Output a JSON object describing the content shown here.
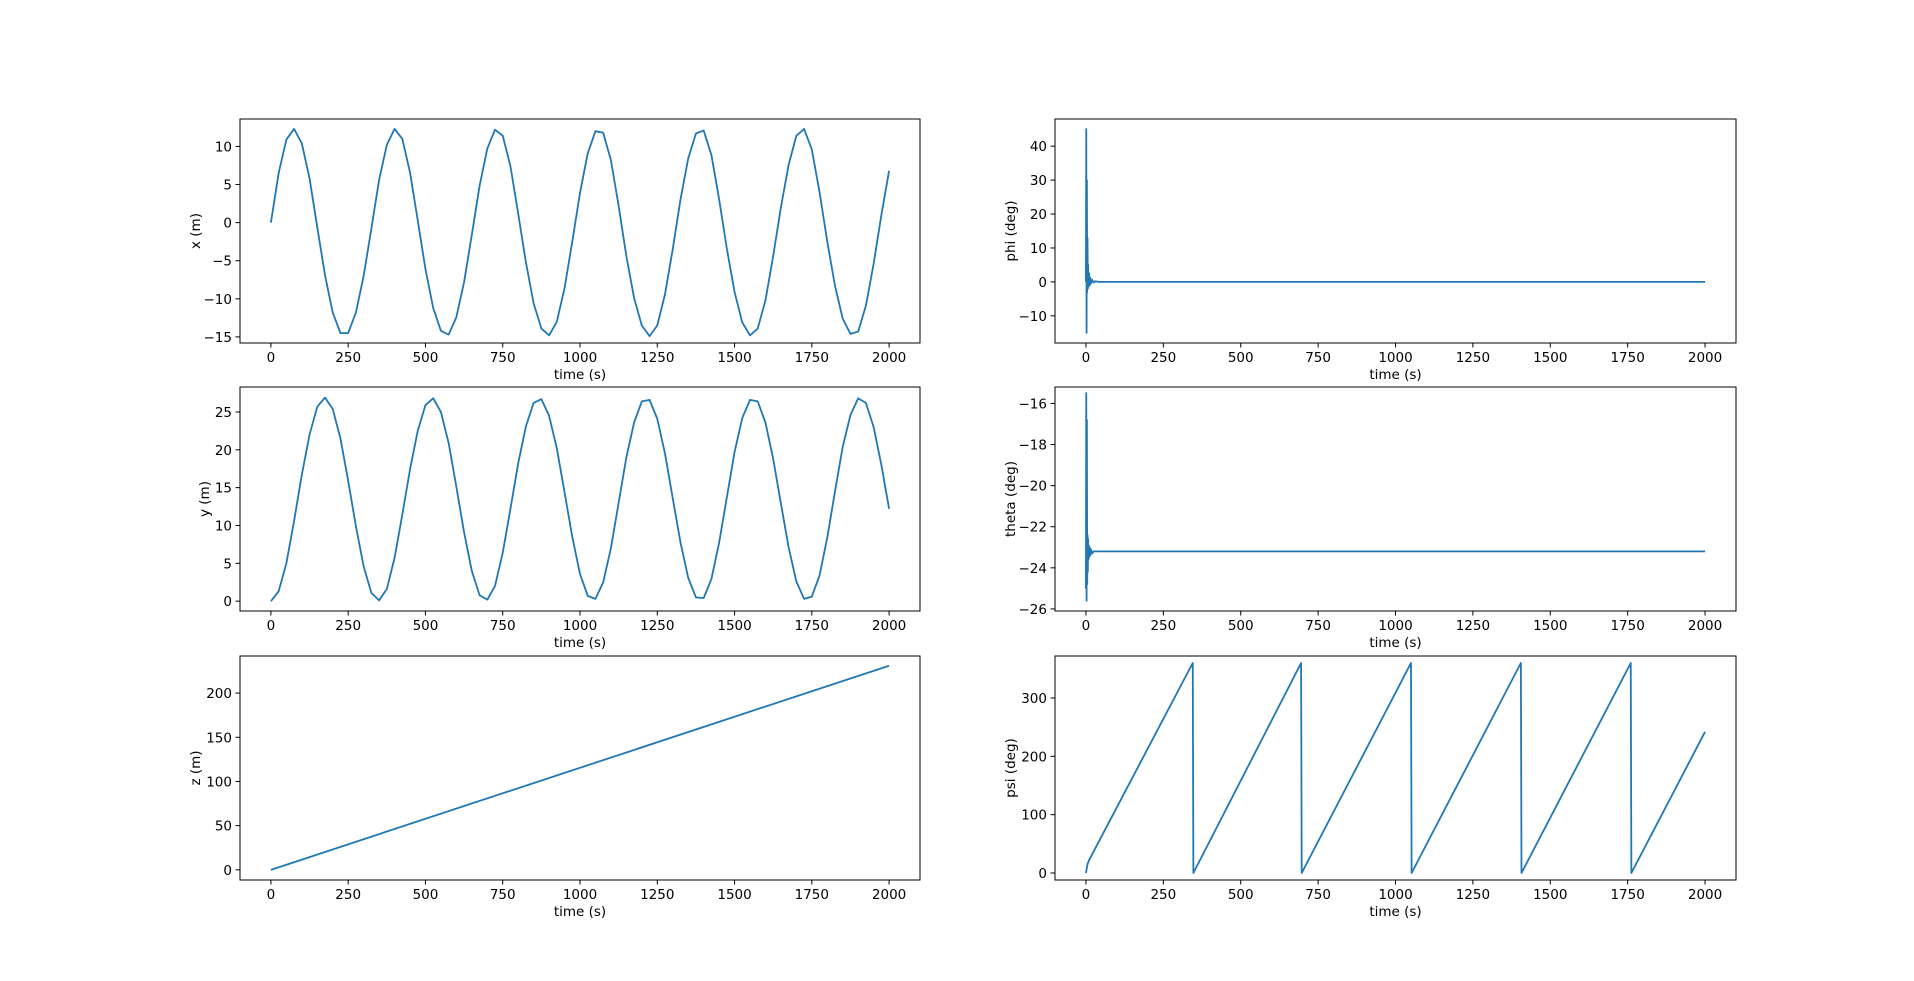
{
  "line_color": "#1f77b4",
  "chart_data": [
    {
      "type": "line",
      "xlabel": "time (s)",
      "ylabel": "x (m)",
      "xlim": [
        -100,
        2100
      ],
      "ylim": [
        -15.8,
        13.6
      ],
      "xticks": [
        0,
        250,
        500,
        750,
        1000,
        1250,
        1500,
        1750,
        2000
      ],
      "yticks": [
        -15,
        -10,
        -5,
        0,
        5,
        10
      ],
      "series": [
        {
          "x": [
            0,
            25,
            50,
            75,
            100,
            125,
            150,
            175,
            200,
            225,
            250,
            275,
            300,
            325,
            350,
            375,
            400,
            425,
            450,
            475,
            500,
            525,
            550,
            575,
            600,
            625,
            650,
            675,
            700,
            725,
            750,
            775,
            800,
            825,
            850,
            875,
            900,
            925,
            950,
            975,
            1000,
            1025,
            1050,
            1075,
            1100,
            1125,
            1150,
            1175,
            1200,
            1225,
            1250,
            1275,
            1300,
            1325,
            1350,
            1375,
            1400,
            1425,
            1450,
            1475,
            1500,
            1525,
            1550,
            1575,
            1600,
            1625,
            1650,
            1675,
            1700,
            1725,
            1750,
            1775,
            1800,
            1825,
            1850,
            1875,
            1900,
            1925,
            1950,
            1975,
            2000
          ],
          "y": [
            0.0,
            6.5,
            10.9,
            12.3,
            10.4,
            5.8,
            -0.6,
            -6.9,
            -11.8,
            -14.5,
            -14.5,
            -11.8,
            -7.0,
            -0.8,
            5.6,
            10.2,
            12.3,
            11.0,
            6.6,
            0.3,
            -6.1,
            -11.2,
            -14.2,
            -14.7,
            -12.4,
            -7.8,
            -1.6,
            4.8,
            9.7,
            12.2,
            11.4,
            7.4,
            1.2,
            -5.2,
            -10.6,
            -13.9,
            -14.8,
            -13.0,
            -8.6,
            -2.5,
            3.9,
            9.1,
            12.0,
            11.8,
            8.2,
            2.2,
            -4.4,
            -9.9,
            -13.5,
            -14.9,
            -13.5,
            -9.4,
            -3.5,
            3.0,
            8.4,
            11.7,
            12.1,
            8.9,
            3.1,
            -3.4,
            -9.1,
            -13.1,
            -14.8,
            -13.9,
            -10.2,
            -4.4,
            2.0,
            7.6,
            11.4,
            12.3,
            9.6,
            4.0,
            -2.5,
            -8.3,
            -12.6,
            -14.6,
            -14.3,
            -10.9,
            -5.4,
            1.0,
            6.8
          ]
        }
      ]
    },
    {
      "type": "line",
      "xlabel": "time (s)",
      "ylabel": "phi (deg)",
      "xlim": [
        -100,
        2100
      ],
      "ylim": [
        -18,
        48
      ],
      "xticks": [
        0,
        250,
        500,
        750,
        1000,
        1250,
        1500,
        1750,
        2000
      ],
      "yticks": [
        -10,
        0,
        10,
        20,
        30,
        40
      ],
      "series": [
        {
          "x": [
            0,
            1,
            2,
            3,
            4,
            5,
            6,
            7,
            8,
            10,
            12,
            14,
            16,
            20,
            25,
            30,
            40,
            60,
            100,
            2000
          ],
          "y": [
            0,
            45,
            -15,
            30,
            -3,
            13,
            -2,
            5,
            -1.5,
            2.5,
            -1.0,
            1.2,
            -0.5,
            0.6,
            -0.2,
            0.2,
            0,
            0,
            0,
            0
          ]
        }
      ]
    },
    {
      "type": "line",
      "xlabel": "time (s)",
      "ylabel": "y (m)",
      "xlim": [
        -100,
        2100
      ],
      "ylim": [
        -1.3,
        28.3
      ],
      "xticks": [
        0,
        250,
        500,
        750,
        1000,
        1250,
        1500,
        1750,
        2000
      ],
      "yticks": [
        0,
        5,
        10,
        15,
        20,
        25
      ],
      "series": [
        {
          "x": [
            0,
            25,
            50,
            75,
            100,
            125,
            150,
            175,
            200,
            225,
            250,
            275,
            300,
            325,
            350,
            375,
            400,
            425,
            450,
            475,
            500,
            525,
            550,
            575,
            600,
            625,
            650,
            675,
            700,
            725,
            750,
            775,
            800,
            825,
            850,
            875,
            900,
            925,
            950,
            975,
            1000,
            1025,
            1050,
            1075,
            1100,
            1125,
            1150,
            1175,
            1200,
            1225,
            1250,
            1275,
            1300,
            1325,
            1350,
            1375,
            1400,
            1425,
            1450,
            1475,
            1500,
            1525,
            1550,
            1575,
            1600,
            1625,
            1650,
            1675,
            1700,
            1725,
            1750,
            1775,
            1800,
            1825,
            1850,
            1875,
            1900,
            1925,
            1950,
            1975,
            2000
          ],
          "y": [
            0.0,
            1.3,
            5.0,
            10.6,
            16.7,
            22.0,
            25.7,
            26.9,
            25.4,
            21.5,
            15.9,
            9.9,
            4.6,
            1.1,
            0.1,
            1.6,
            5.7,
            11.4,
            17.4,
            22.5,
            25.9,
            26.8,
            25.0,
            20.9,
            15.1,
            9.1,
            4.0,
            0.8,
            0.2,
            2.0,
            6.4,
            12.2,
            18.2,
            23.1,
            26.2,
            26.7,
            24.5,
            20.2,
            14.4,
            8.5,
            3.6,
            0.7,
            0.3,
            2.5,
            7.0,
            13.0,
            19.0,
            23.6,
            26.4,
            26.6,
            24.1,
            19.5,
            13.6,
            7.8,
            3.1,
            0.5,
            0.4,
            2.9,
            7.7,
            13.7,
            19.7,
            24.2,
            26.6,
            26.4,
            23.6,
            18.8,
            12.9,
            7.1,
            2.6,
            0.3,
            0.6,
            3.4,
            8.4,
            14.5,
            20.4,
            24.6,
            26.8,
            26.2,
            23.0,
            18.0,
            12.2
          ]
        }
      ]
    },
    {
      "type": "line",
      "xlabel": "time (s)",
      "ylabel": "theta (deg)",
      "xlim": [
        -100,
        2100
      ],
      "ylim": [
        -26.1,
        -15.2
      ],
      "xticks": [
        0,
        250,
        500,
        750,
        1000,
        1250,
        1500,
        1750,
        2000
      ],
      "yticks": [
        -26,
        -24,
        -22,
        -20,
        -18,
        -16
      ],
      "series": [
        {
          "x": [
            0,
            1,
            2,
            3,
            4,
            5,
            6,
            7,
            8,
            9,
            10,
            12,
            14,
            16,
            20,
            25,
            30,
            40,
            60,
            100,
            2000
          ],
          "y": [
            -25.0,
            -15.5,
            -25.6,
            -16.8,
            -24.8,
            -22.4,
            -24.2,
            -22.6,
            -23.6,
            -22.9,
            -23.5,
            -23.0,
            -23.4,
            -23.1,
            -23.3,
            -23.2,
            -23.2,
            -23.2,
            -23.2,
            -23.2,
            -23.2
          ]
        }
      ]
    },
    {
      "type": "line",
      "xlabel": "time (s)",
      "ylabel": "z (m)",
      "xlim": [
        -100,
        2100
      ],
      "ylim": [
        -11.5,
        242
      ],
      "xticks": [
        0,
        250,
        500,
        750,
        1000,
        1250,
        1500,
        1750,
        2000
      ],
      "yticks": [
        0,
        50,
        100,
        150,
        200
      ],
      "series": [
        {
          "x": [
            0,
            2000
          ],
          "y": [
            0,
            231
          ]
        }
      ]
    },
    {
      "type": "line",
      "xlabel": "time (s)",
      "ylabel": "psi (deg)",
      "xlim": [
        -100,
        2100
      ],
      "ylim": [
        -12,
        372
      ],
      "xticks": [
        0,
        250,
        500,
        750,
        1000,
        1250,
        1500,
        1750,
        2000
      ],
      "yticks": [
        0,
        100,
        200,
        300
      ],
      "series": [
        {
          "x": [
            0,
            5,
            10,
            345,
            347,
            695,
            697,
            1050,
            1052,
            1405,
            1407,
            1760,
            1762,
            2000
          ],
          "y": [
            0,
            15,
            22,
            360,
            0,
            360,
            0,
            360,
            0,
            360,
            0,
            360,
            0,
            242
          ]
        }
      ]
    }
  ]
}
